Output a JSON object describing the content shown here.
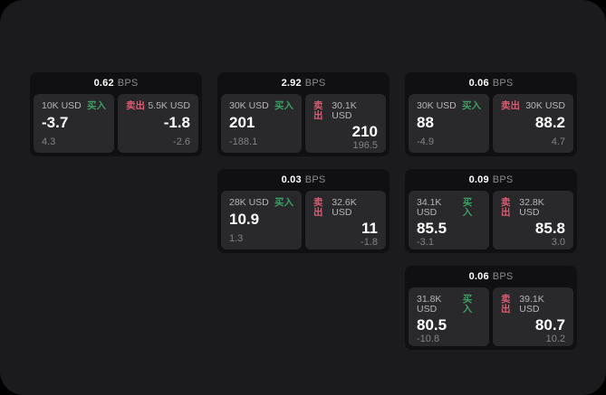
{
  "theme": {
    "page_bg": "#000000",
    "panel_bg": "#1b1b1d",
    "card_bg": "#101012",
    "tile_bg": "#29292c",
    "buy_color": "#3d9e63",
    "sell_color": "#d85c72",
    "text_primary": "#ffffff",
    "text_secondary": "#b6b6ba",
    "text_muted": "#828287"
  },
  "labels": {
    "bps_unit": "BPS",
    "buy": "买入",
    "sell": "卖出"
  },
  "cards": [
    {
      "bps": "0.62",
      "buy": {
        "amount": "10K USD",
        "value": "-3.7",
        "sub": "4.3"
      },
      "sell": {
        "amount": "5.5K USD",
        "value": "-1.8",
        "sub": "-2.6"
      }
    },
    {
      "bps": "2.92",
      "buy": {
        "amount": "30K USD",
        "value": "201",
        "sub": "-188.1"
      },
      "sell": {
        "amount": "30.1K USD",
        "value": "210",
        "sub": "196.5"
      }
    },
    {
      "bps": "0.06",
      "buy": {
        "amount": "30K USD",
        "value": "88",
        "sub": "-4.9"
      },
      "sell": {
        "amount": "30K USD",
        "value": "88.2",
        "sub": "4.7"
      }
    },
    {
      "bps": "0.03",
      "buy": {
        "amount": "28K USD",
        "value": "10.9",
        "sub": "1.3"
      },
      "sell": {
        "amount": "32.6K USD",
        "value": "11",
        "sub": "-1.8"
      }
    },
    {
      "bps": "0.09",
      "buy": {
        "amount": "34.1K USD",
        "value": "85.5",
        "sub": "-3.1"
      },
      "sell": {
        "amount": "32.8K USD",
        "value": "85.8",
        "sub": "3.0"
      }
    },
    {
      "bps": "0.06",
      "buy": {
        "amount": "31.8K USD",
        "value": "80.5",
        "sub": "-10.8"
      },
      "sell": {
        "amount": "39.1K USD",
        "value": "80.7",
        "sub": "10.2"
      }
    }
  ]
}
